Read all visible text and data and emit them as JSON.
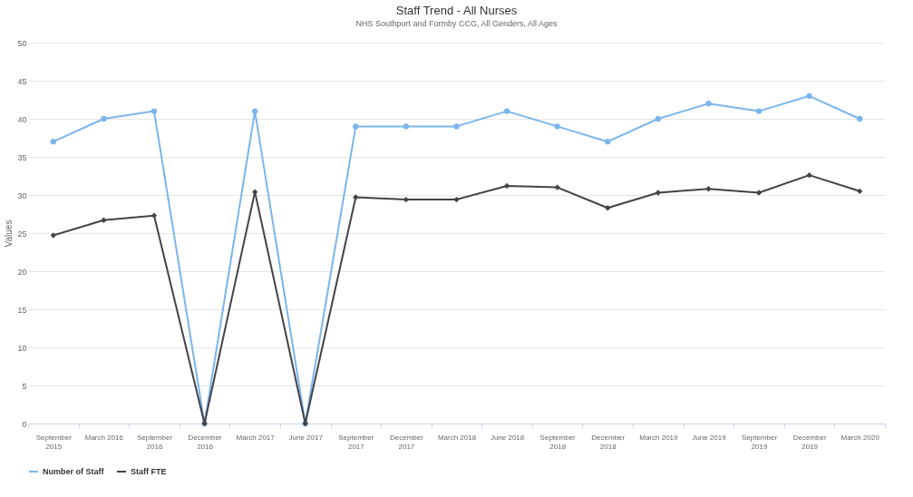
{
  "chart_data": {
    "type": "line",
    "title": "Staff Trend - All Nurses",
    "subtitle": "NHS Southport and Formby CCG, All Genders, All Ages",
    "ylabel": "Values",
    "categories": [
      "September 2015",
      "March 2016",
      "September 2016",
      "December 2016",
      "March 2017",
      "June 2017",
      "September 2017",
      "December 2017",
      "March 2018",
      "June 2018",
      "September 2018",
      "December 2018",
      "March 2019",
      "June 2019",
      "September 2019",
      "December 2019",
      "March 2020"
    ],
    "series": [
      {
        "name": "Number of Staff",
        "color": "#7cb5ec",
        "marker": "circle",
        "values": [
          37,
          40,
          41,
          0,
          41,
          0,
          39,
          39,
          39,
          41,
          39,
          37,
          40,
          42,
          41,
          43,
          40
        ]
      },
      {
        "name": "Staff FTE",
        "color": "#434348",
        "marker": "diamond",
        "values": [
          24.7,
          26.7,
          27.3,
          0,
          30.4,
          0,
          29.7,
          29.4,
          29.4,
          31.2,
          31.0,
          28.3,
          30.3,
          30.8,
          30.3,
          32.6,
          30.5
        ]
      }
    ],
    "ylim": [
      0,
      50
    ],
    "yticks": [
      0,
      5,
      10,
      15,
      20,
      25,
      30,
      35,
      40,
      45,
      50
    ],
    "grid": "y",
    "legend": "bottom"
  }
}
